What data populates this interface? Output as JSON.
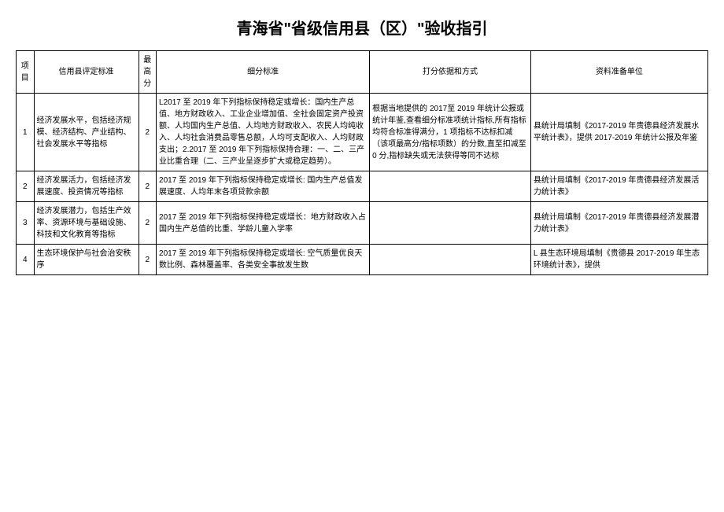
{
  "title": "青海省\"省级信用县（区）\"验收指引",
  "headers": {
    "col1": "项目",
    "col2": "信用县评定标准",
    "col3": "最高分",
    "col4": "细分标准",
    "col5": "打分依据和方式",
    "col6": "资料准备单位"
  },
  "rows": [
    {
      "num": "1",
      "standard": "经济发展水平，包括经济规模、经济结构、产业结构、社会发展水平等指标",
      "score": "2",
      "detail": "L2017 至 2019 年下列指标保持稳定或增长：国内生产总值、地方财政收入、工业企业增加值、全社会固定资产投资额、人均国内生产总值、人均地方财政收入、农民人均纯收入、人均社会消费品零售总额，人均可支配收入、人均财政支出；2.2017 至 2019 年下列指标保持合理：一、二、三产业比重合理（二、三产业呈逐步扩大或稳定趋势）。",
      "basis": "根据当地提供的 2017至 2019 年统计公报或统计年鉴,查看细分标准项统计指标,所有指标均符合标准得满分，1 项指标不达标扣减（该项最高分/指标项数）的分数,直至扣减至 0 分,指标缺失或无法获得等同不达标",
      "prep": "县统计局填制《2017-2019 年贵德县经济发展水平统计表》，提供 2017-2019 年统计公报及年鉴"
    },
    {
      "num": "2",
      "standard": "经济发展活力，包括经济发展速度、投资情况等指标",
      "score": "2",
      "detail": "2017 至 2019 年下列指标保持稳定或增长: 国内生产总值发展速度、人均年末各项贷款余额",
      "basis": "",
      "prep": "县统计局填制《2017-2019 年贵德县经济发展活力统计表》"
    },
    {
      "num": "3",
      "standard": "经济发展潜力，包括生产效率、资源环境与基础设施、科技和文化教育等指标",
      "score": "2",
      "detail": "2017 至 2019 年下列指标保持稳定或增长：地方财政收入占国内生产总值的比重、学龄儿童入学率",
      "basis": "",
      "prep": "县统计局填制《2017-2019 年贵德县经济发展潜力统计表》"
    },
    {
      "num": "4",
      "standard": "生态环境保护与社会治安秩序",
      "score": "2",
      "detail": "2017 至 2019 年下列指标保持稳定或增长: 空气质量优良天数比例、森林覆盖率、各类安全事故发生数",
      "basis": "",
      "prep": "L 县生态环境局填制《贵德县 2017-2019 年生态环境统计表》，提供"
    }
  ],
  "styling": {
    "background_color": "#ffffff",
    "border_color": "#000000",
    "text_color": "#000000",
    "title_fontsize": 20,
    "cell_fontsize": 10,
    "column_widths": {
      "num": 22,
      "standard": 130,
      "score": 22,
      "detail": 265,
      "basis": 200,
      "prep": 220
    }
  }
}
